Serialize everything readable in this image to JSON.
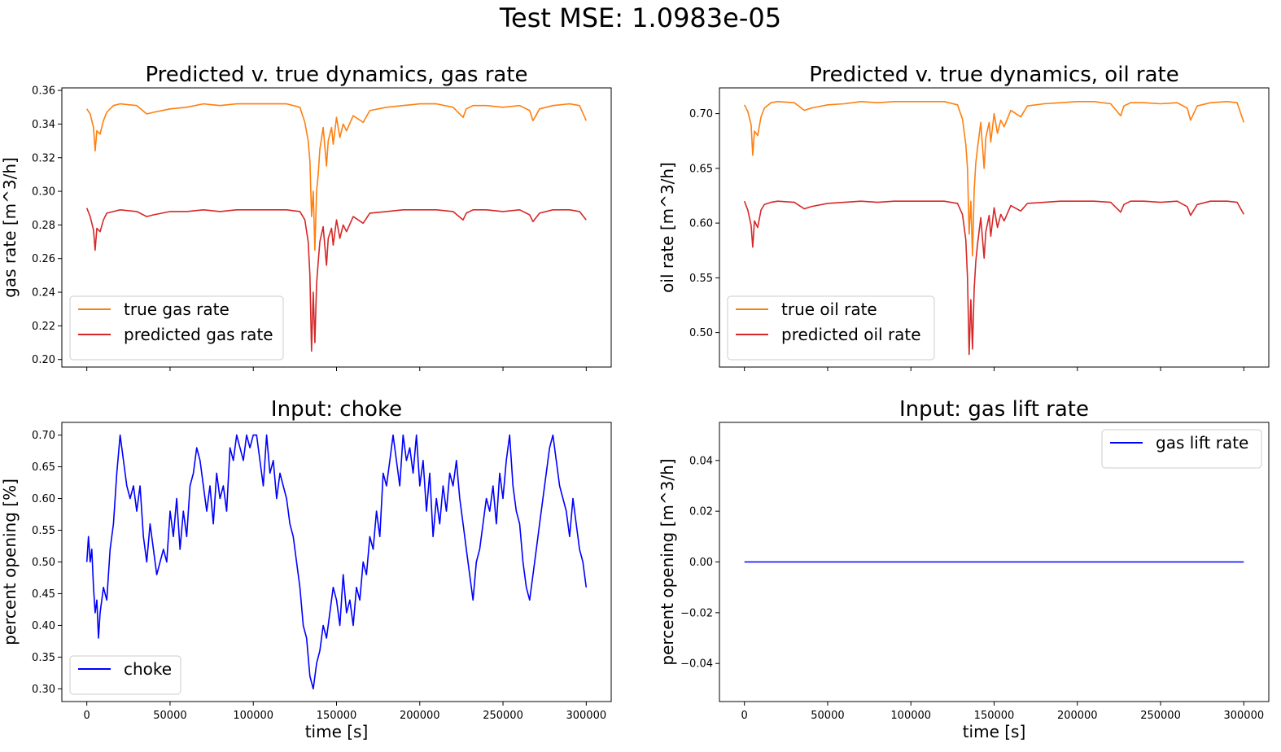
{
  "suptitle": "Test MSE: 1.0983e-05",
  "colors": {
    "true": "#ff7f0e",
    "predicted": "#d62728",
    "input": "#0000ff",
    "axis": "#000000"
  },
  "chart_data": [
    {
      "id": "gas",
      "type": "line",
      "title": "Predicted v. true dynamics, gas rate",
      "xlabel": "",
      "ylabel": "gas rate [m^3/h]",
      "xlim": [
        -15000,
        315000
      ],
      "ylim": [
        0.1955,
        0.3615
      ],
      "xticks": [
        0,
        50000,
        100000,
        150000,
        200000,
        250000,
        300000
      ],
      "xtick_labels_visible": false,
      "yticks": [
        0.2,
        0.22,
        0.24,
        0.26,
        0.28,
        0.3,
        0.32,
        0.34,
        0.36
      ],
      "ytick_labels": [
        "0.20",
        "0.22",
        "0.24",
        "0.26",
        "0.28",
        "0.30",
        "0.32",
        "0.34",
        "0.36"
      ],
      "legend_loc": "lower left",
      "grid": false,
      "series": [
        {
          "name": "true gas rate",
          "color": "#ff7f0e",
          "x": [
            0,
            2000,
            4000,
            5000,
            6000,
            8000,
            10000,
            12000,
            16000,
            20000,
            30000,
            36000,
            40000,
            50000,
            60000,
            70000,
            80000,
            90000,
            100000,
            110000,
            120000,
            128000,
            131000,
            133000,
            134000,
            135000,
            136000,
            137000,
            138000,
            139000,
            140000,
            142000,
            144000,
            145000,
            147000,
            148000,
            150000,
            152000,
            154000,
            156000,
            160000,
            166000,
            170000,
            180000,
            190000,
            200000,
            210000,
            220000,
            226000,
            228000,
            232000,
            240000,
            250000,
            260000,
            266000,
            268000,
            272000,
            280000,
            290000,
            296000,
            300000
          ],
          "y": [
            0.349,
            0.346,
            0.338,
            0.324,
            0.336,
            0.334,
            0.342,
            0.347,
            0.351,
            0.352,
            0.351,
            0.346,
            0.347,
            0.349,
            0.35,
            0.352,
            0.351,
            0.352,
            0.352,
            0.352,
            0.352,
            0.35,
            0.341,
            0.33,
            0.318,
            0.285,
            0.3,
            0.265,
            0.3,
            0.31,
            0.325,
            0.338,
            0.315,
            0.33,
            0.338,
            0.328,
            0.344,
            0.332,
            0.34,
            0.336,
            0.345,
            0.341,
            0.348,
            0.35,
            0.351,
            0.352,
            0.352,
            0.35,
            0.344,
            0.349,
            0.351,
            0.351,
            0.35,
            0.351,
            0.348,
            0.342,
            0.349,
            0.351,
            0.352,
            0.351,
            0.342
          ]
        },
        {
          "name": "predicted gas rate",
          "color": "#d62728",
          "x": [
            0,
            2000,
            4000,
            5000,
            6000,
            8000,
            10000,
            12000,
            16000,
            20000,
            30000,
            36000,
            40000,
            50000,
            60000,
            70000,
            80000,
            90000,
            100000,
            110000,
            120000,
            128000,
            131000,
            133000,
            134000,
            135000,
            136000,
            137000,
            138000,
            139000,
            140000,
            142000,
            144000,
            145000,
            147000,
            148000,
            150000,
            152000,
            154000,
            156000,
            160000,
            166000,
            170000,
            180000,
            190000,
            200000,
            210000,
            220000,
            226000,
            228000,
            232000,
            240000,
            250000,
            260000,
            266000,
            268000,
            272000,
            280000,
            290000,
            296000,
            300000
          ],
          "y": [
            0.29,
            0.285,
            0.277,
            0.265,
            0.278,
            0.276,
            0.283,
            0.287,
            0.288,
            0.289,
            0.288,
            0.285,
            0.286,
            0.288,
            0.288,
            0.289,
            0.288,
            0.289,
            0.289,
            0.289,
            0.289,
            0.288,
            0.283,
            0.27,
            0.25,
            0.205,
            0.24,
            0.21,
            0.245,
            0.258,
            0.27,
            0.279,
            0.256,
            0.272,
            0.278,
            0.268,
            0.283,
            0.272,
            0.28,
            0.276,
            0.285,
            0.281,
            0.287,
            0.288,
            0.289,
            0.289,
            0.289,
            0.288,
            0.283,
            0.287,
            0.289,
            0.289,
            0.288,
            0.289,
            0.286,
            0.282,
            0.287,
            0.289,
            0.289,
            0.288,
            0.283
          ]
        }
      ]
    },
    {
      "id": "oil",
      "type": "line",
      "title": "Predicted v. true dynamics, oil rate",
      "xlabel": "",
      "ylabel": "oil rate [m^3/h]",
      "xlim": [
        -15000,
        315000
      ],
      "ylim": [
        0.4685,
        0.7235
      ],
      "xticks": [
        0,
        50000,
        100000,
        150000,
        200000,
        250000,
        300000
      ],
      "xtick_labels_visible": false,
      "yticks": [
        0.5,
        0.55,
        0.6,
        0.65,
        0.7
      ],
      "ytick_labels": [
        "0.50",
        "0.55",
        "0.60",
        "0.65",
        "0.70"
      ],
      "legend_loc": "lower left",
      "grid": false,
      "series": [
        {
          "name": "true oil rate",
          "color": "#ff7f0e",
          "x": [
            0,
            2000,
            4000,
            5000,
            6000,
            8000,
            10000,
            12000,
            16000,
            20000,
            30000,
            36000,
            40000,
            50000,
            60000,
            70000,
            80000,
            90000,
            100000,
            110000,
            120000,
            128000,
            131000,
            133000,
            134000,
            135000,
            136000,
            137000,
            138000,
            139000,
            140000,
            142000,
            144000,
            145000,
            147000,
            148000,
            150000,
            152000,
            154000,
            156000,
            160000,
            166000,
            170000,
            180000,
            190000,
            200000,
            210000,
            220000,
            226000,
            228000,
            232000,
            240000,
            250000,
            260000,
            266000,
            268000,
            272000,
            280000,
            290000,
            296000,
            300000
          ],
          "y": [
            0.708,
            0.702,
            0.69,
            0.662,
            0.684,
            0.68,
            0.697,
            0.705,
            0.71,
            0.711,
            0.71,
            0.703,
            0.705,
            0.708,
            0.709,
            0.711,
            0.71,
            0.711,
            0.711,
            0.711,
            0.711,
            0.708,
            0.695,
            0.672,
            0.65,
            0.59,
            0.62,
            0.57,
            0.63,
            0.655,
            0.668,
            0.692,
            0.65,
            0.678,
            0.692,
            0.674,
            0.7,
            0.682,
            0.694,
            0.688,
            0.703,
            0.697,
            0.707,
            0.709,
            0.71,
            0.711,
            0.711,
            0.709,
            0.698,
            0.707,
            0.71,
            0.71,
            0.709,
            0.71,
            0.705,
            0.694,
            0.707,
            0.71,
            0.711,
            0.71,
            0.692
          ]
        },
        {
          "name": "predicted oil rate",
          "color": "#d62728",
          "x": [
            0,
            2000,
            4000,
            5000,
            6000,
            8000,
            10000,
            12000,
            16000,
            20000,
            30000,
            36000,
            40000,
            50000,
            60000,
            70000,
            80000,
            90000,
            100000,
            110000,
            120000,
            128000,
            131000,
            133000,
            134000,
            135000,
            136000,
            137000,
            138000,
            139000,
            140000,
            142000,
            144000,
            145000,
            147000,
            148000,
            150000,
            152000,
            154000,
            156000,
            160000,
            166000,
            170000,
            180000,
            190000,
            200000,
            210000,
            220000,
            226000,
            228000,
            232000,
            240000,
            250000,
            260000,
            266000,
            268000,
            272000,
            280000,
            290000,
            296000,
            300000
          ],
          "y": [
            0.62,
            0.612,
            0.598,
            0.578,
            0.602,
            0.596,
            0.612,
            0.617,
            0.619,
            0.62,
            0.619,
            0.613,
            0.615,
            0.618,
            0.619,
            0.62,
            0.619,
            0.62,
            0.62,
            0.62,
            0.62,
            0.618,
            0.608,
            0.585,
            0.55,
            0.48,
            0.53,
            0.485,
            0.54,
            0.565,
            0.58,
            0.605,
            0.568,
            0.592,
            0.607,
            0.588,
            0.614,
            0.596,
            0.608,
            0.602,
            0.616,
            0.611,
            0.618,
            0.619,
            0.62,
            0.62,
            0.62,
            0.619,
            0.61,
            0.617,
            0.62,
            0.62,
            0.619,
            0.62,
            0.615,
            0.607,
            0.617,
            0.62,
            0.62,
            0.619,
            0.608
          ]
        }
      ]
    },
    {
      "id": "choke",
      "type": "line",
      "title": "Input: choke",
      "xlabel": "time [s]",
      "ylabel": "percent opening [%]",
      "xlim": [
        -15000,
        315000
      ],
      "ylim": [
        0.28,
        0.72
      ],
      "xticks": [
        0,
        50000,
        100000,
        150000,
        200000,
        250000,
        300000
      ],
      "xtick_labels": [
        "0",
        "50000",
        "100000",
        "150000",
        "200000",
        "250000",
        "300000"
      ],
      "yticks": [
        0.3,
        0.35,
        0.4,
        0.45,
        0.5,
        0.55,
        0.6,
        0.65,
        0.7
      ],
      "ytick_labels": [
        "0.30",
        "0.35",
        "0.40",
        "0.45",
        "0.50",
        "0.55",
        "0.60",
        "0.65",
        "0.70"
      ],
      "legend_loc": "lower left",
      "grid": false,
      "series": [
        {
          "name": "choke",
          "color": "#0000ff",
          "x": [
            0,
            1000,
            2000,
            3000,
            4000,
            5000,
            6000,
            7000,
            8000,
            10000,
            12000,
            14000,
            16000,
            18000,
            20000,
            22000,
            24000,
            26000,
            28000,
            30000,
            32000,
            34000,
            36000,
            38000,
            40000,
            42000,
            44000,
            46000,
            48000,
            50000,
            52000,
            54000,
            56000,
            58000,
            60000,
            62000,
            64000,
            66000,
            68000,
            70000,
            72000,
            74000,
            76000,
            78000,
            80000,
            82000,
            84000,
            86000,
            88000,
            90000,
            92000,
            94000,
            96000,
            98000,
            100000,
            102000,
            104000,
            106000,
            108000,
            110000,
            112000,
            114000,
            116000,
            118000,
            120000,
            122000,
            124000,
            126000,
            128000,
            130000,
            132000,
            134000,
            136000,
            138000,
            140000,
            142000,
            144000,
            146000,
            148000,
            150000,
            152000,
            154000,
            156000,
            158000,
            160000,
            162000,
            164000,
            166000,
            168000,
            170000,
            172000,
            174000,
            176000,
            178000,
            180000,
            182000,
            184000,
            186000,
            188000,
            190000,
            192000,
            194000,
            196000,
            198000,
            200000,
            202000,
            204000,
            206000,
            208000,
            210000,
            212000,
            214000,
            216000,
            218000,
            220000,
            222000,
            224000,
            226000,
            228000,
            230000,
            232000,
            234000,
            236000,
            238000,
            240000,
            242000,
            244000,
            246000,
            248000,
            250000,
            252000,
            254000,
            256000,
            258000,
            260000,
            262000,
            264000,
            266000,
            268000,
            270000,
            272000,
            274000,
            276000,
            278000,
            280000,
            282000,
            284000,
            286000,
            288000,
            290000,
            292000,
            294000,
            296000,
            298000,
            300000
          ],
          "y": [
            0.5,
            0.54,
            0.5,
            0.52,
            0.46,
            0.42,
            0.44,
            0.38,
            0.42,
            0.46,
            0.44,
            0.52,
            0.56,
            0.64,
            0.7,
            0.66,
            0.62,
            0.6,
            0.62,
            0.58,
            0.62,
            0.54,
            0.5,
            0.56,
            0.52,
            0.48,
            0.5,
            0.52,
            0.5,
            0.58,
            0.54,
            0.6,
            0.52,
            0.58,
            0.54,
            0.62,
            0.64,
            0.68,
            0.66,
            0.62,
            0.58,
            0.62,
            0.56,
            0.64,
            0.6,
            0.62,
            0.58,
            0.68,
            0.66,
            0.7,
            0.68,
            0.66,
            0.7,
            0.68,
            0.7,
            0.7,
            0.66,
            0.62,
            0.7,
            0.64,
            0.66,
            0.6,
            0.64,
            0.62,
            0.6,
            0.56,
            0.54,
            0.5,
            0.46,
            0.4,
            0.38,
            0.32,
            0.3,
            0.34,
            0.36,
            0.4,
            0.38,
            0.42,
            0.46,
            0.44,
            0.4,
            0.48,
            0.42,
            0.44,
            0.4,
            0.46,
            0.44,
            0.5,
            0.48,
            0.54,
            0.52,
            0.58,
            0.54,
            0.64,
            0.62,
            0.66,
            0.7,
            0.66,
            0.62,
            0.7,
            0.66,
            0.68,
            0.64,
            0.7,
            0.62,
            0.66,
            0.58,
            0.64,
            0.54,
            0.6,
            0.56,
            0.62,
            0.58,
            0.64,
            0.62,
            0.66,
            0.6,
            0.56,
            0.52,
            0.48,
            0.44,
            0.5,
            0.52,
            0.56,
            0.6,
            0.58,
            0.62,
            0.56,
            0.64,
            0.6,
            0.66,
            0.7,
            0.62,
            0.58,
            0.56,
            0.5,
            0.46,
            0.44,
            0.48,
            0.52,
            0.56,
            0.6,
            0.64,
            0.68,
            0.7,
            0.66,
            0.62,
            0.6,
            0.58,
            0.54,
            0.6,
            0.56,
            0.52,
            0.5,
            0.46
          ]
        }
      ]
    },
    {
      "id": "lift",
      "type": "line",
      "title": "Input: gas lift rate",
      "xlabel": "time [s]",
      "ylabel": "percent opening [m^3/h]",
      "xlim": [
        -15000,
        315000
      ],
      "ylim": [
        -0.055,
        0.055
      ],
      "xticks": [
        0,
        50000,
        100000,
        150000,
        200000,
        250000,
        300000
      ],
      "xtick_labels": [
        "0",
        "50000",
        "100000",
        "150000",
        "200000",
        "250000",
        "300000"
      ],
      "yticks": [
        -0.04,
        -0.02,
        0.0,
        0.02,
        0.04
      ],
      "ytick_labels": [
        "−0.04",
        "−0.02",
        "0.00",
        "0.02",
        "0.04"
      ],
      "legend_loc": "upper right",
      "grid": false,
      "series": [
        {
          "name": "gas lift rate",
          "color": "#0000ff",
          "x": [
            0,
            300000
          ],
          "y": [
            0,
            0
          ]
        }
      ]
    }
  ]
}
